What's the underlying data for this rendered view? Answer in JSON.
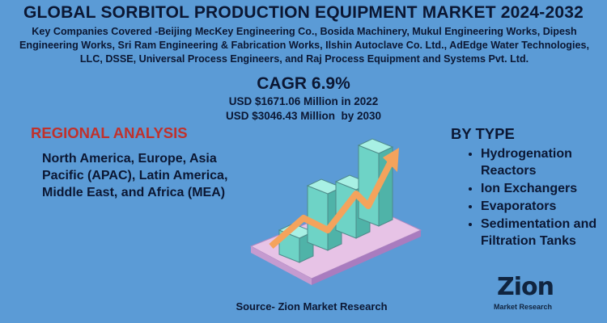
{
  "header": {
    "title": "GLOBAL SORBITOL PRODUCTION EQUIPMENT MARKET 2024-2032",
    "companies": "Key Companies Covered -Beijing MecKey Engineering Co., Bosida Machinery, Mukul Engineering Works, Dipesh Engineering Works, Sri Ram Engineering & Fabrication Works, Ilshin Autoclave Co. Ltd., AdEdge Water Technologies, LLC, DSSE, Universal Process Engineers, and Raj Process Equipment and Systems Pvt. Ltd."
  },
  "stats": {
    "cagr": "CAGR 6.9%",
    "value_2022": "USD $1671.06 Million in 2022",
    "value_2030": "USD $3046.43 Million  by 2030"
  },
  "regional": {
    "heading": "REGIONAL ANALYSIS",
    "text": "North America, Europe, Asia Pacific (APAC), Latin America, Middle East, and Africa (MEA)"
  },
  "by_type": {
    "heading": "BY TYPE",
    "items": [
      "Hydrogenation Reactors",
      "Ion Exchangers",
      "Evaporators",
      "Sedimentation and Filtration Tanks"
    ]
  },
  "footer": {
    "source": "Source- Zion Market Research",
    "logo": "Zion",
    "logo_sub": "Market Research"
  }
}
